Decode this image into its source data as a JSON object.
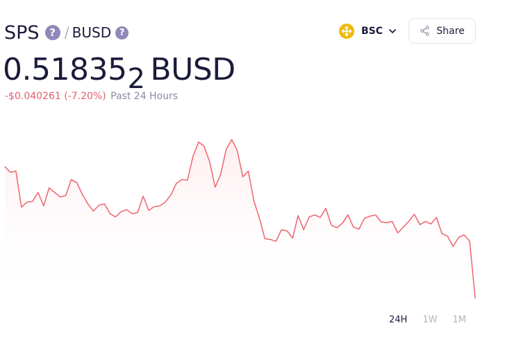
{
  "pair": {
    "base": "SPS",
    "separator": "/",
    "quote": "BUSD",
    "help_glyph": "?"
  },
  "price": {
    "main": "0.51835",
    "subscript": "2",
    "unit": "BUSD"
  },
  "change": {
    "amount": "-$0.040261",
    "percent": "(-7.20%)",
    "period": "Past 24 Hours"
  },
  "chain": {
    "label": "BSC",
    "icon": "bnb-icon"
  },
  "share": {
    "label": "Share",
    "icon": "share-icon"
  },
  "ranges": [
    {
      "label": "24H",
      "active": true
    },
    {
      "label": "1W",
      "active": false
    },
    {
      "label": "1M",
      "active": false
    }
  ],
  "colors": {
    "line": "#ee6b74",
    "fill": "#fdf1f2",
    "text": "#1b1b3a",
    "muted": "#8a8aa0",
    "negative": "#e35d6a",
    "bnb": "#f0b90b"
  },
  "chart_data": {
    "type": "area",
    "title": "",
    "xlabel": "",
    "ylabel": "",
    "ylim": [
      0,
      1
    ],
    "values": [
      0.767,
      0.736,
      0.743,
      0.543,
      0.571,
      0.575,
      0.625,
      0.55,
      0.65,
      0.625,
      0.6,
      0.607,
      0.696,
      0.679,
      0.614,
      0.561,
      0.521,
      0.554,
      0.561,
      0.507,
      0.489,
      0.518,
      0.529,
      0.507,
      0.514,
      0.604,
      0.525,
      0.546,
      0.55,
      0.571,
      0.611,
      0.675,
      0.696,
      0.693,
      0.825,
      0.904,
      0.882,
      0.796,
      0.654,
      0.725,
      0.864,
      0.918,
      0.857,
      0.711,
      0.743,
      0.579,
      0.482,
      0.368,
      0.364,
      0.354,
      0.418,
      0.411,
      0.371,
      0.496,
      0.418,
      0.489,
      0.5,
      0.486,
      0.536,
      0.443,
      0.429,
      0.454,
      0.5,
      0.432,
      0.421,
      0.482,
      0.493,
      0.5,
      0.461,
      0.457,
      0.464,
      0.4,
      0.432,
      0.464,
      0.504,
      0.446,
      0.464,
      0.45,
      0.486,
      0.396,
      0.382,
      0.325,
      0.375,
      0.389,
      0.354,
      0.039
    ]
  }
}
